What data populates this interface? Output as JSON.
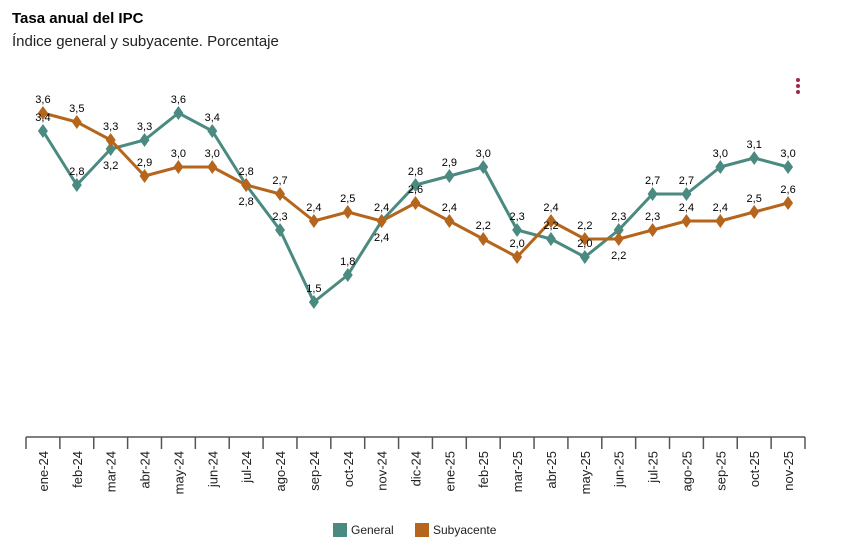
{
  "header": {
    "title": "Tasa anual del IPC",
    "subtitle": "Índice general y subyacente. Porcentaje",
    "menu_icon": "vertical-ellipsis-icon"
  },
  "chart_data": {
    "type": "line",
    "title": "Tasa anual del IPC",
    "subtitle": "Índice general y subyacente. Porcentaje",
    "categories": [
      "ene-24",
      "feb-24",
      "mar-24",
      "abr-24",
      "may-24",
      "jun-24",
      "jul-24",
      "ago-24",
      "sep-24",
      "oct-24",
      "nov-24",
      "dic-24",
      "ene-25",
      "feb-25",
      "mar-25",
      "abr-25",
      "may-25",
      "jun-25",
      "jul-25",
      "ago-25",
      "sep-25",
      "oct-25",
      "nov-25"
    ],
    "series": [
      {
        "name": "General",
        "color": "#4a8a80",
        "values": [
          3.4,
          2.8,
          3.2,
          3.3,
          3.6,
          3.4,
          2.8,
          2.3,
          1.5,
          1.8,
          2.4,
          2.8,
          2.9,
          3.0,
          2.3,
          2.2,
          2.0,
          2.3,
          2.7,
          2.7,
          3.0,
          3.1,
          3.0
        ]
      },
      {
        "name": "Subyacente",
        "color": "#b5661c",
        "values": [
          3.6,
          3.5,
          3.3,
          2.9,
          3.0,
          3.0,
          2.8,
          2.7,
          2.4,
          2.5,
          2.4,
          2.6,
          2.4,
          2.2,
          2.0,
          2.4,
          2.2,
          2.2,
          2.3,
          2.4,
          2.4,
          2.5,
          2.6
        ]
      }
    ],
    "ylim": [
      0,
      4
    ],
    "grid": false,
    "y_axis_visible": false,
    "decimal_separator": ",",
    "legend_position": "bottom"
  }
}
